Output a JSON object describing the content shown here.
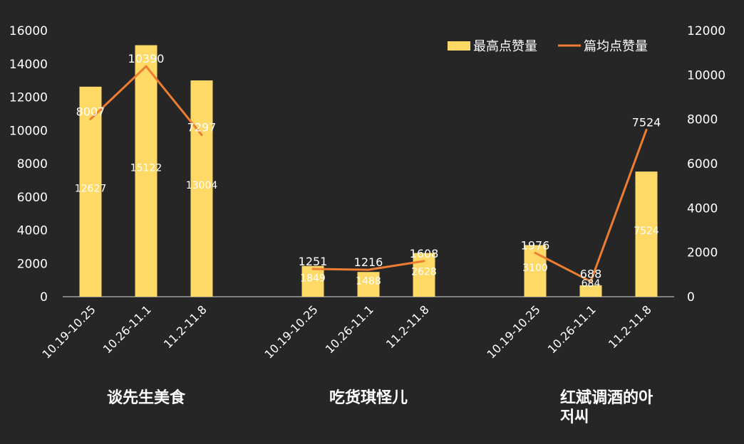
{
  "chart_data": {
    "type": "bar+line",
    "title": "",
    "groups": [
      {
        "name": "谈先生美食",
        "name_lines": [
          "谈先生美食"
        ],
        "categories": [
          "10.19-10.25",
          "10.26-11.1",
          "11.2-11.8"
        ],
        "bar_values": [
          12627,
          15122,
          13004
        ],
        "line_values": [
          8007,
          10390,
          7297
        ]
      },
      {
        "name": "吃货琪怪儿",
        "name_lines": [
          "吃货琪怪儿"
        ],
        "categories": [
          "10.19-10.25",
          "10.26-11.1",
          "11.2-11.8"
        ],
        "bar_values": [
          1849,
          1488,
          2628
        ],
        "line_values": [
          1251,
          1216,
          1608
        ]
      },
      {
        "name": "红斌调酒的아저씨",
        "name_lines": [
          "红斌调酒的아",
          "저씨"
        ],
        "categories": [
          "10.19-10.25",
          "10.26-11.1",
          "11.2-11.8"
        ],
        "bar_values": [
          3100,
          684,
          7524
        ],
        "line_values": [
          1976,
          688,
          7524
        ]
      }
    ],
    "series": [
      {
        "name": "最高点赞量",
        "type": "bar",
        "axis": "left",
        "color": "#FFD966"
      },
      {
        "name": "篇均点赞量",
        "type": "line",
        "axis": "right",
        "color": "#ED7D31"
      }
    ],
    "y_left": {
      "min": 0,
      "max": 16000,
      "ticks": [
        0,
        2000,
        4000,
        6000,
        8000,
        10000,
        12000,
        14000,
        16000
      ]
    },
    "y_right": {
      "min": 0,
      "max": 12000,
      "ticks": [
        0,
        2000,
        4000,
        6000,
        8000,
        10000,
        12000
      ]
    },
    "legend_position": "top-right",
    "grid": false
  }
}
